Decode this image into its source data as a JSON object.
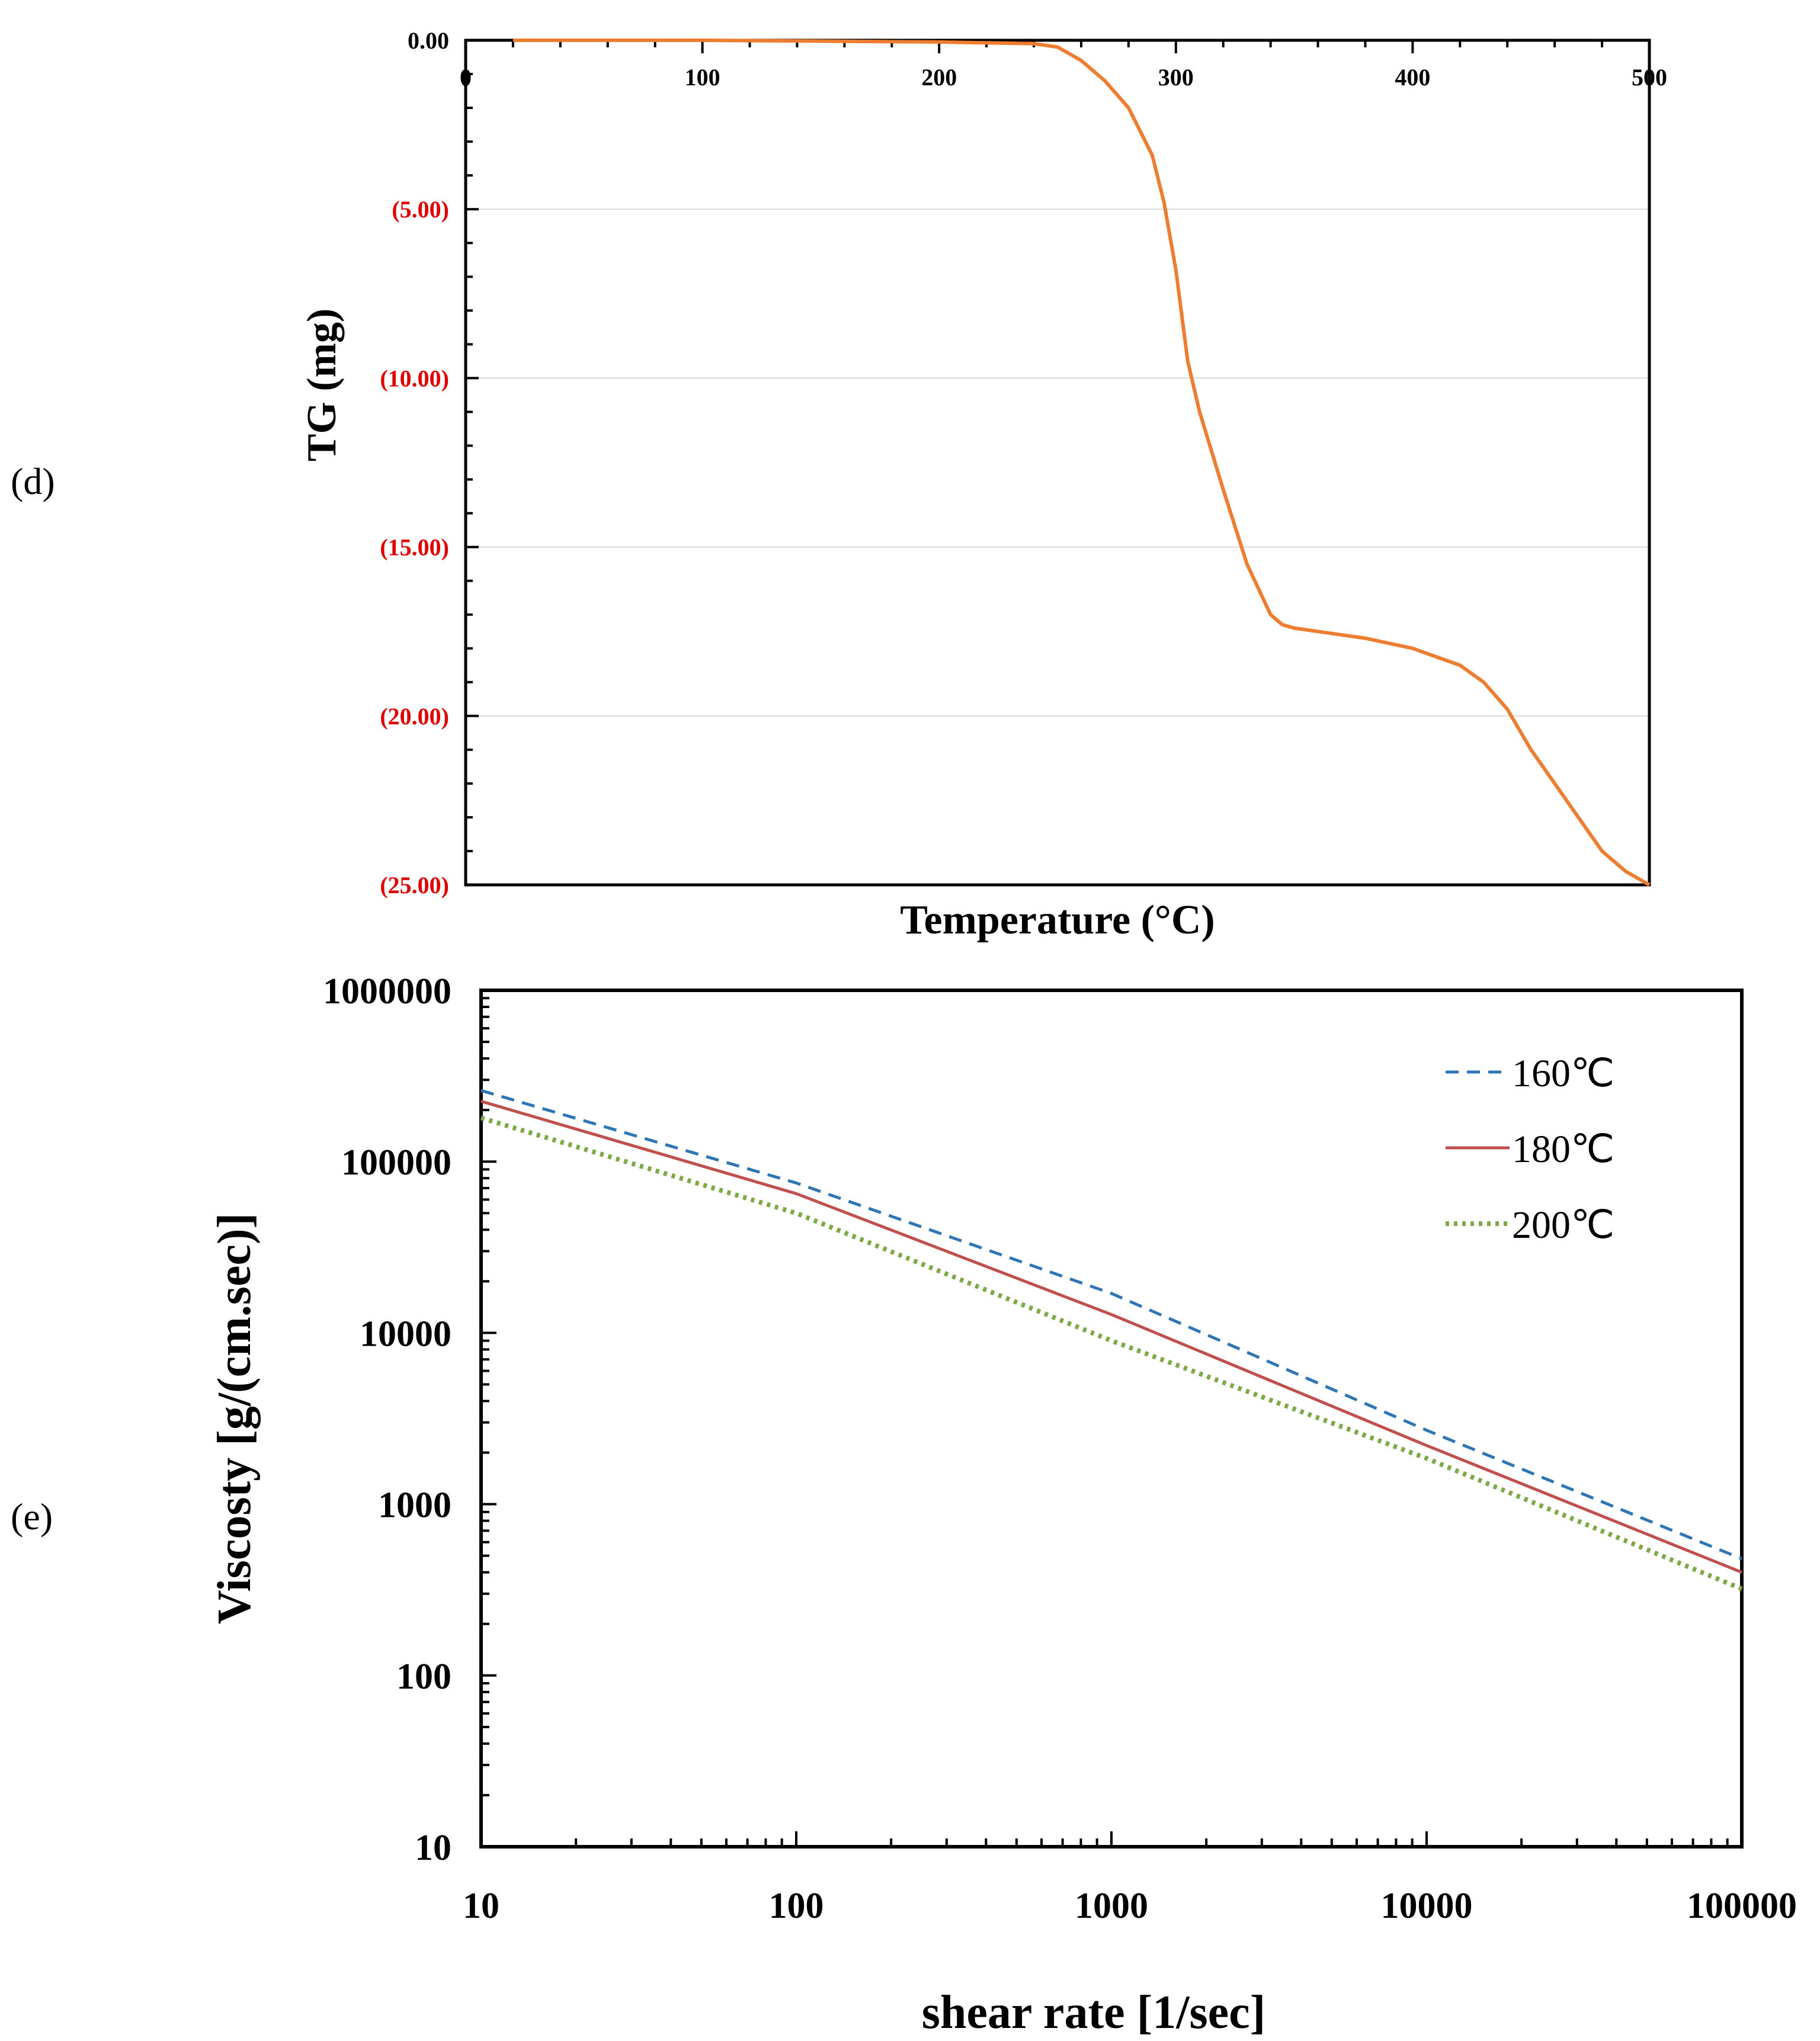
{
  "chart_data": [
    {
      "id": "d",
      "panel_label": "(d)",
      "type": "line",
      "title": "",
      "xlabel": "Temperature (°C)",
      "ylabel": "TG (mg)",
      "xlim": [
        0,
        500
      ],
      "ylim": [
        -25,
        0
      ],
      "grid": true,
      "x_ticks": [
        0,
        100,
        200,
        300,
        400,
        500
      ],
      "x_tick_labels": [
        "0",
        "100",
        "200",
        "300",
        "400",
        "500"
      ],
      "y_ticks": [
        0,
        -5,
        -10,
        -15,
        -20,
        -25
      ],
      "y_tick_labels": [
        "0.00",
        "(5.00)",
        "(10.00)",
        "(15.00)",
        "(20.00)",
        "(25.00)"
      ],
      "y_tick_colors": [
        "#000000",
        "#e00000",
        "#e00000",
        "#e00000",
        "#e00000",
        "#e00000"
      ],
      "series": [
        {
          "name": "TG",
          "color": "#ed7d31",
          "x": [
            20,
            100,
            200,
            240,
            250,
            260,
            270,
            280,
            290,
            295,
            300,
            305,
            310,
            320,
            330,
            340,
            345,
            350,
            360,
            380,
            400,
            420,
            430,
            440,
            450,
            460,
            470,
            480,
            490,
            500
          ],
          "y": [
            0,
            0,
            -0.05,
            -0.1,
            -0.2,
            -0.6,
            -1.2,
            -2.0,
            -3.4,
            -4.8,
            -6.8,
            -9.5,
            -11.0,
            -13.3,
            -15.5,
            -17.0,
            -17.3,
            -17.4,
            -17.5,
            -17.7,
            -18.0,
            -18.5,
            -19.0,
            -19.8,
            -21.0,
            -22.0,
            -23.0,
            -24.0,
            -24.6,
            -25.0
          ]
        }
      ]
    },
    {
      "id": "e",
      "panel_label": "(e)",
      "type": "line",
      "title": "",
      "xlabel": "shear rate [1/sec]",
      "ylabel": "Viscosty [g/(cm.sec)]",
      "xscale": "log",
      "yscale": "log",
      "xlim": [
        10,
        100000
      ],
      "ylim": [
        10,
        1000000
      ],
      "x_ticks": [
        10,
        100,
        1000,
        10000,
        100000
      ],
      "x_tick_labels": [
        "10",
        "100",
        "1000",
        "10000",
        "100000"
      ],
      "y_ticks": [
        10,
        100,
        1000,
        10000,
        100000,
        1000000
      ],
      "y_tick_labels": [
        "10",
        "100",
        "1000",
        "10000",
        "100000",
        "1000000"
      ],
      "legend_position": "top-right",
      "series": [
        {
          "name": "160℃",
          "color": "#2e75b6",
          "style": "dashed",
          "x": [
            10,
            100,
            1000,
            10000,
            100000
          ],
          "y": [
            260000,
            75000,
            17000,
            2700,
            480
          ]
        },
        {
          "name": "180℃",
          "color": "#c0504d",
          "style": "solid",
          "x": [
            10,
            100,
            1000,
            10000,
            100000
          ],
          "y": [
            225000,
            65000,
            12800,
            2200,
            400
          ]
        },
        {
          "name": "200℃",
          "color": "#7fa848",
          "style": "dotted",
          "x": [
            10,
            100,
            1000,
            10000,
            100000
          ],
          "y": [
            180000,
            50000,
            9000,
            1850,
            320
          ]
        }
      ]
    }
  ]
}
